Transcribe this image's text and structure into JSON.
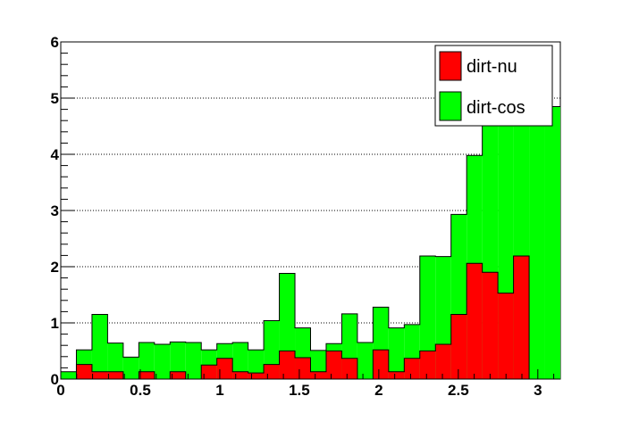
{
  "chart_data": {
    "type": "bar",
    "stacked": true,
    "title": "",
    "xlabel": "",
    "ylabel": "",
    "xlim": [
      0,
      3.14159
    ],
    "ylim": [
      0,
      6
    ],
    "bins": 32,
    "xticks": [
      "0",
      "0.5",
      "1",
      "1.5",
      "2",
      "2.5",
      "3"
    ],
    "xtick_values": [
      0,
      0.5,
      1,
      1.5,
      2,
      2.5,
      3
    ],
    "yticks": [
      "0",
      "1",
      "2",
      "3",
      "4",
      "5",
      "6"
    ],
    "ytick_values": [
      0,
      1,
      2,
      3,
      4,
      5,
      6
    ],
    "grid": "horizontal dotted",
    "legend_position": "top-right",
    "series": [
      {
        "name": "dirt-nu",
        "color": "#ff0000",
        "values": [
          0,
          0.26,
          0.13,
          0.13,
          0,
          0.13,
          0,
          0.13,
          0,
          0.25,
          0.37,
          0.13,
          0.11,
          0.26,
          0.5,
          0.38,
          0.13,
          0.5,
          0.37,
          0,
          0.52,
          0.13,
          0.37,
          0.5,
          0.62,
          1.15,
          2.06,
          1.9,
          1.53,
          2.19,
          0,
          0
        ]
      },
      {
        "name": "dirt-cos",
        "color": "#00ff00",
        "total": [
          0.13,
          0.52,
          1.15,
          0.64,
          0.39,
          0.65,
          0.62,
          0.66,
          0.65,
          0.52,
          0.63,
          0.65,
          0.52,
          1.04,
          1.88,
          0.91,
          0.51,
          0.63,
          1.16,
          0.65,
          1.28,
          0.91,
          0.97,
          2.19,
          2.18,
          2.93,
          3.98,
          4.85,
          4.85,
          4.85,
          4.85,
          4.85
        ]
      }
    ]
  }
}
